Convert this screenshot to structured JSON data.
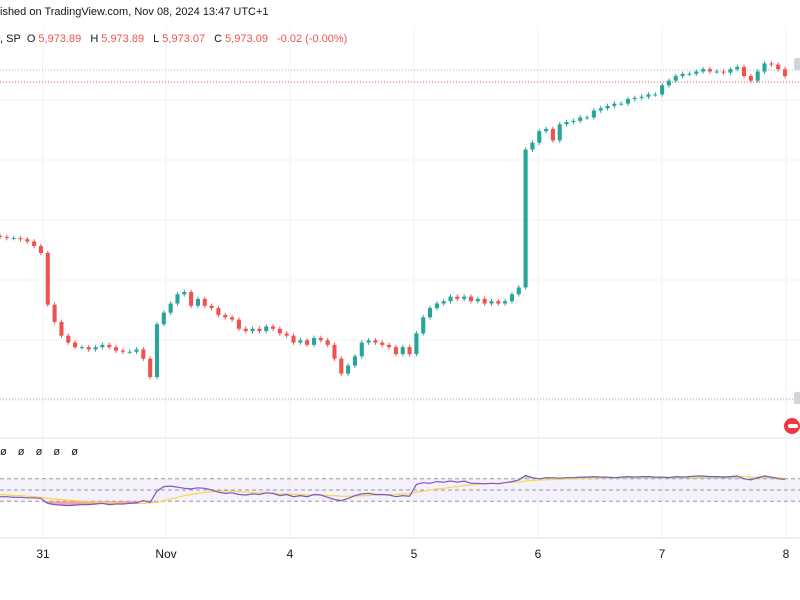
{
  "header": {
    "published": "ished on TradingView.com, Nov 08, 2024 13:47 UTC+1"
  },
  "ohlc": {
    "symbol": ", SP",
    "o_label": "O",
    "o_value": "5,973.89",
    "h_label": "H",
    "h_value": "5,973.89",
    "l_label": "L",
    "l_value": "5,973.07",
    "c_label": "C",
    "c_value": "5,973.09",
    "change": "-0.02 (-0.00%)"
  },
  "rsi_indicators": [
    "ø",
    "ø",
    "ø",
    "ø",
    "ø"
  ],
  "colors": {
    "up": "#26a69a",
    "down": "#ef5350",
    "rsi": "#7e57c2",
    "rsi_ma": "#f7d74d",
    "rsi_band": "#ede7f6",
    "overbought_fill": "#a5d6a7",
    "oversold_fill": "#ef9a9a",
    "grid": "#f0f3fa"
  },
  "chart_data": [
    {
      "type": "candlestick",
      "x_ticks": [
        "31",
        "Nov",
        "4",
        "5",
        "6",
        "7",
        "8"
      ],
      "ylim": [
        5692,
        5988
      ],
      "note_series": "close prices, approx. one per 30-min bar",
      "close": [
        5834,
        5833,
        5833,
        5832,
        5830,
        5826,
        5820,
        5775,
        5760,
        5748,
        5742,
        5738,
        5738,
        5736,
        5738,
        5740,
        5738,
        5735,
        5734,
        5734,
        5736,
        5728,
        5712,
        5758,
        5768,
        5776,
        5784,
        5786,
        5774,
        5780,
        5774,
        5772,
        5766,
        5764,
        5762,
        5754,
        5752,
        5754,
        5752,
        5756,
        5754,
        5750,
        5748,
        5742,
        5744,
        5740,
        5746,
        5744,
        5740,
        5728,
        5715,
        5722,
        5730,
        5742,
        5744,
        5742,
        5740,
        5738,
        5732,
        5738,
        5732,
        5750,
        5764,
        5772,
        5776,
        5778,
        5782,
        5780,
        5782,
        5778,
        5780,
        5776,
        5778,
        5776,
        5778,
        5784,
        5790,
        5910,
        5916,
        5926,
        5928,
        5918,
        5932,
        5934,
        5935,
        5938,
        5938,
        5944,
        5946,
        5948,
        5950,
        5950,
        5954,
        5955,
        5956,
        5958,
        5958,
        5966,
        5970,
        5974,
        5976,
        5976,
        5978,
        5980,
        5978,
        5978,
        5977,
        5980,
        5982,
        5974,
        5970,
        5978,
        5985,
        5984,
        5980,
        5974
      ],
      "rsi_ylim": [
        0,
        100
      ],
      "rsi_levels": [
        70,
        50,
        30
      ],
      "rsi": [
        38,
        38,
        37,
        37,
        36,
        36,
        35,
        26,
        24,
        23,
        22,
        23,
        24,
        24,
        25,
        26,
        24,
        25,
        25,
        26,
        27,
        31,
        28,
        48,
        56,
        57,
        55,
        53,
        52,
        54,
        53,
        50,
        46,
        44,
        45,
        42,
        41,
        43,
        42,
        45,
        44,
        40,
        42,
        38,
        40,
        38,
        42,
        41,
        37,
        33,
        31,
        35,
        40,
        43,
        44,
        42,
        42,
        41,
        38,
        40,
        39,
        60,
        63,
        62,
        65,
        64,
        66,
        64,
        66,
        62,
        62,
        61,
        62,
        61,
        63,
        65,
        68,
        76,
        72,
        70,
        72,
        72,
        71,
        72,
        72,
        73,
        73,
        74,
        73,
        73,
        72,
        73,
        74,
        73,
        74,
        74,
        73,
        73,
        72,
        74,
        73,
        74,
        75,
        75,
        74,
        74,
        73,
        74,
        75,
        70,
        68,
        72,
        75,
        73,
        70,
        69
      ],
      "rsi_ma": [
        42,
        41,
        40,
        40,
        39,
        38,
        37,
        35,
        34,
        33,
        32,
        31,
        30,
        29,
        28,
        28,
        27,
        27,
        26,
        26,
        26,
        26,
        27,
        28,
        31,
        34,
        37,
        40,
        42,
        44,
        46,
        47,
        48,
        48,
        48,
        47,
        46,
        46,
        45,
        45,
        44,
        43,
        43,
        42,
        42,
        41,
        41,
        41,
        40,
        40,
        39,
        39,
        39,
        40,
        40,
        41,
        41,
        42,
        42,
        43,
        43,
        46,
        48,
        50,
        52,
        53,
        55,
        56,
        58,
        59,
        60,
        61,
        62,
        62,
        63,
        64,
        64,
        66,
        67,
        68,
        68,
        69,
        69,
        70,
        70,
        71,
        71,
        71,
        72,
        72,
        72,
        72,
        72,
        73,
        73,
        73,
        73,
        73,
        73,
        73,
        73,
        73,
        73,
        74,
        74,
        74,
        74,
        74,
        74,
        74,
        73,
        73,
        73,
        73,
        72,
        71
      ]
    }
  ]
}
